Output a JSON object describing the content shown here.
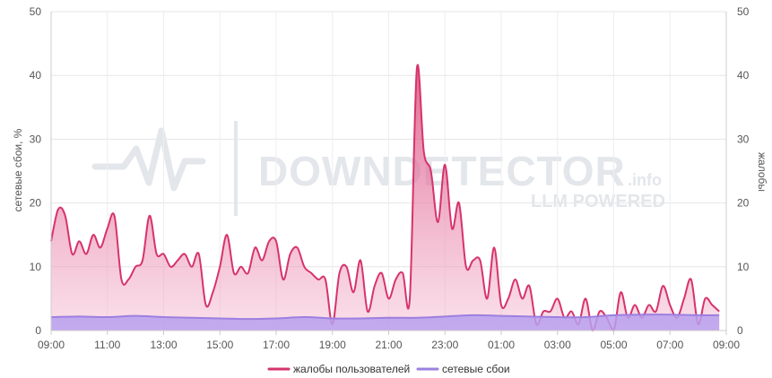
{
  "watermark": {
    "brand": "DOWNDETECTOR",
    "suffix": ".info",
    "tagline": "LLM POWERED"
  },
  "chart_data": {
    "type": "area",
    "x_tick_labels": [
      "09:00",
      "11:00",
      "13:00",
      "15:00",
      "17:00",
      "19:00",
      "21:00",
      "23:00",
      "01:00",
      "03:00",
      "05:00",
      "07:00",
      "09:00"
    ],
    "xlim_hours": [
      0,
      24
    ],
    "ylim": [
      0,
      50
    ],
    "y_ticks": [
      0,
      10,
      20,
      30,
      40,
      50
    ],
    "ylabel_left": "сетевые сбои, %",
    "ylabel_right": "жалобы",
    "grid": true,
    "legend_position": "bottom-center",
    "series": [
      {
        "name": "жалобы пользователей",
        "color": "#d6336c",
        "points": [
          [
            0,
            14
          ],
          [
            0.25,
            19
          ],
          [
            0.5,
            18
          ],
          [
            0.75,
            12
          ],
          [
            1,
            14
          ],
          [
            1.25,
            12
          ],
          [
            1.5,
            15
          ],
          [
            1.75,
            13
          ],
          [
            2,
            16
          ],
          [
            2.25,
            18
          ],
          [
            2.5,
            8
          ],
          [
            2.75,
            8
          ],
          [
            3,
            10
          ],
          [
            3.25,
            11
          ],
          [
            3.5,
            18
          ],
          [
            3.75,
            12
          ],
          [
            4,
            12
          ],
          [
            4.25,
            10
          ],
          [
            4.5,
            11
          ],
          [
            4.75,
            12
          ],
          [
            5,
            10
          ],
          [
            5.25,
            12
          ],
          [
            5.5,
            4
          ],
          [
            5.75,
            6
          ],
          [
            6,
            10
          ],
          [
            6.25,
            15
          ],
          [
            6.5,
            9
          ],
          [
            6.75,
            10
          ],
          [
            7,
            9
          ],
          [
            7.25,
            13
          ],
          [
            7.5,
            11
          ],
          [
            7.75,
            14
          ],
          [
            8,
            14
          ],
          [
            8.25,
            8
          ],
          [
            8.5,
            12
          ],
          [
            8.75,
            13
          ],
          [
            9,
            10
          ],
          [
            9.25,
            9
          ],
          [
            9.5,
            8
          ],
          [
            9.75,
            8
          ],
          [
            10,
            1
          ],
          [
            10.25,
            9
          ],
          [
            10.5,
            10
          ],
          [
            10.75,
            6
          ],
          [
            11,
            11
          ],
          [
            11.25,
            3
          ],
          [
            11.5,
            7
          ],
          [
            11.75,
            9
          ],
          [
            12,
            5
          ],
          [
            12.25,
            8
          ],
          [
            12.5,
            9
          ],
          [
            12.75,
            5
          ],
          [
            13,
            41
          ],
          [
            13.25,
            28
          ],
          [
            13.5,
            25
          ],
          [
            13.75,
            17
          ],
          [
            14,
            26
          ],
          [
            14.25,
            16
          ],
          [
            14.5,
            20
          ],
          [
            14.75,
            10
          ],
          [
            15,
            11
          ],
          [
            15.25,
            11
          ],
          [
            15.5,
            5
          ],
          [
            15.75,
            13
          ],
          [
            16,
            4
          ],
          [
            16.25,
            5
          ],
          [
            16.5,
            8
          ],
          [
            16.75,
            5
          ],
          [
            17,
            7
          ],
          [
            17.25,
            1
          ],
          [
            17.5,
            3
          ],
          [
            17.75,
            3
          ],
          [
            18,
            5
          ],
          [
            18.25,
            2
          ],
          [
            18.5,
            3
          ],
          [
            18.75,
            1
          ],
          [
            19,
            5
          ],
          [
            19.25,
            0
          ],
          [
            19.5,
            3
          ],
          [
            19.75,
            2
          ],
          [
            20,
            0
          ],
          [
            20.25,
            6
          ],
          [
            20.5,
            2
          ],
          [
            20.75,
            4
          ],
          [
            21,
            2
          ],
          [
            21.25,
            4
          ],
          [
            21.5,
            3
          ],
          [
            21.75,
            7
          ],
          [
            22,
            4
          ],
          [
            22.25,
            2
          ],
          [
            22.5,
            5
          ],
          [
            22.75,
            8
          ],
          [
            23,
            1
          ],
          [
            23.25,
            5
          ],
          [
            23.5,
            4
          ],
          [
            23.75,
            3
          ]
        ]
      },
      {
        "name": "сетевые сбои",
        "color": "#9c7fe0",
        "points": [
          [
            0,
            2.1
          ],
          [
            1,
            2.2
          ],
          [
            2,
            2.1
          ],
          [
            3,
            2.3
          ],
          [
            4,
            2.1
          ],
          [
            5,
            2.0
          ],
          [
            6,
            1.9
          ],
          [
            7,
            1.8
          ],
          [
            8,
            1.9
          ],
          [
            9,
            2.1
          ],
          [
            10,
            1.9
          ],
          [
            11,
            1.9
          ],
          [
            12,
            2.0
          ],
          [
            13,
            2.0
          ],
          [
            14,
            2.2
          ],
          [
            15,
            2.4
          ],
          [
            16,
            2.3
          ],
          [
            17,
            2.2
          ],
          [
            18,
            2.1
          ],
          [
            19,
            2.1
          ],
          [
            20,
            2.4
          ],
          [
            21,
            2.5
          ],
          [
            22,
            2.5
          ],
          [
            23,
            2.4
          ],
          [
            23.75,
            2.4
          ]
        ]
      }
    ]
  }
}
